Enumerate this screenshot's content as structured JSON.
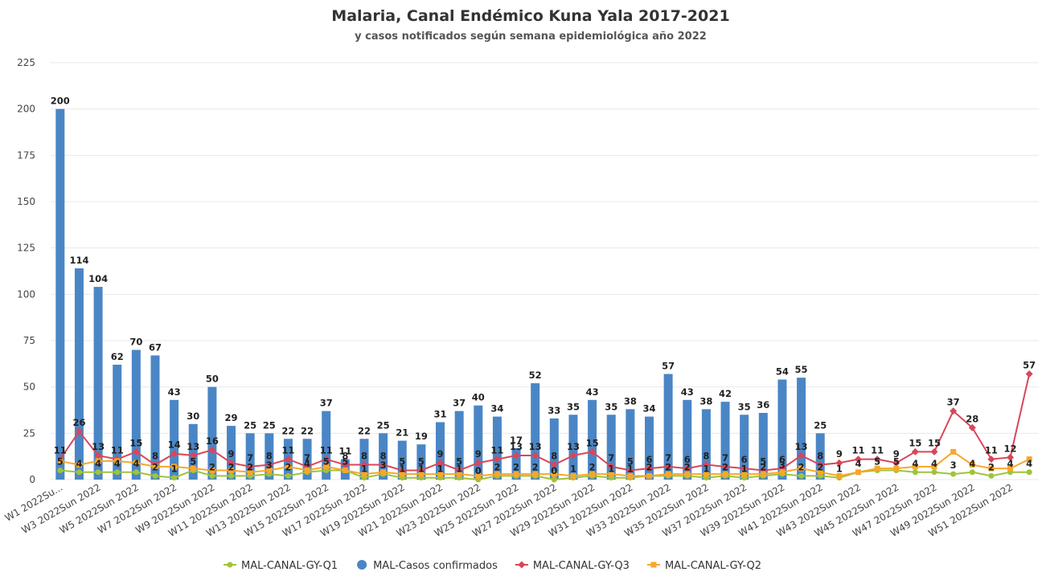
{
  "chart_data": {
    "type": "bar-line",
    "title": "Malaria, Canal Endémico Kuna Yala 2017-2021",
    "subtitle": "y casos notificados según semana epidemiológica año 2022",
    "categories": [
      "W1 2022Su...",
      null,
      "W3 2022Sun 2022",
      null,
      "W5 2022Sun 2022",
      null,
      "W7 2022Sun 2022",
      null,
      "W9 2022Sun 2022",
      null,
      "W11 2022Sun 2022",
      null,
      "W13 2022Sun 2022",
      null,
      "W15 2022Sun 2022",
      null,
      "W17 2022Sun 2022",
      null,
      "W19 2022Sun 2022",
      null,
      "W21 2022Sun 2022",
      null,
      "W23 2022Sun 2022",
      null,
      "W25 2022Sun 2022",
      null,
      "W27 2022Sun 2022",
      null,
      "W29 2022Sun 2022",
      null,
      "W31 2022Sun 2022",
      null,
      "W33 2022Sun 2022",
      null,
      "W35 2022Sun 2022",
      null,
      "W37 2022Sun 2022",
      null,
      "W39 2022Sun 2022",
      null,
      "W41 2022Sun 2022",
      null,
      "W43 2022Sun 2022",
      null,
      "W45 2022Sun 2022",
      null,
      "W47 2022Sun 2022",
      null,
      "W49 2022Sun 2022",
      null,
      "W51 2022Sun 2022",
      null
    ],
    "series": [
      {
        "name": "MAL-CANAL-GY-Q1",
        "kind": "line",
        "marker": "circle",
        "color": "#9ec43a",
        "labels": true,
        "values": [
          5,
          4,
          4,
          4,
          4,
          2,
          1,
          5,
          2,
          2,
          2,
          3,
          2,
          4,
          5,
          5,
          1,
          3,
          1,
          1,
          1,
          1,
          0,
          2,
          2,
          2,
          0,
          1,
          2,
          1,
          1,
          2,
          2,
          2,
          1,
          2,
          1,
          2,
          3,
          2,
          2,
          1,
          4,
          5,
          5,
          4,
          4,
          3,
          4,
          2,
          4,
          4
        ]
      },
      {
        "name": "MAL-Casos confirmados",
        "kind": "bar",
        "color": "#4a86c5",
        "labels": true,
        "values": [
          200,
          114,
          104,
          62,
          70,
          67,
          43,
          30,
          50,
          29,
          25,
          25,
          22,
          22,
          37,
          11,
          22,
          25,
          21,
          19,
          31,
          37,
          40,
          34,
          17,
          52,
          33,
          35,
          43,
          35,
          38,
          34,
          57,
          43,
          38,
          42,
          35,
          36,
          54,
          55,
          25,
          null,
          null,
          null,
          null,
          null,
          null,
          null,
          null,
          null,
          null,
          null
        ]
      },
      {
        "name": "MAL-CANAL-GY-Q3",
        "kind": "line",
        "marker": "diamond",
        "color": "#d9465a",
        "labels": true,
        "values": [
          11,
          26,
          13,
          11,
          15,
          8,
          14,
          13,
          16,
          9,
          7,
          8,
          11,
          7,
          11,
          8,
          8,
          8,
          5,
          5,
          9,
          5,
          9,
          11,
          13,
          13,
          8,
          13,
          15,
          7,
          5,
          6,
          7,
          6,
          8,
          7,
          6,
          5,
          6,
          13,
          8,
          9,
          11,
          11,
          9,
          15,
          15,
          37,
          28,
          11,
          12,
          57
        ]
      },
      {
        "name": "MAL-CANAL-GY-Q2",
        "kind": "line",
        "marker": "square",
        "color": "#f7a72b",
        "labels": false,
        "values": [
          10,
          8,
          10,
          10,
          9,
          7,
          7,
          6,
          5,
          5,
          4,
          5,
          7,
          5,
          7,
          5,
          3,
          4,
          3,
          3,
          3,
          3,
          2,
          3,
          3,
          3,
          3,
          2,
          3,
          3,
          2,
          2,
          3,
          3,
          3,
          3,
          3,
          3,
          4,
          6,
          4,
          2,
          4,
          6,
          6,
          7,
          7,
          15,
          8,
          6,
          6,
          11
        ]
      }
    ],
    "ylim": [
      0,
      225
    ],
    "yticks": [
      0,
      25,
      50,
      75,
      100,
      125,
      150,
      175,
      200,
      225
    ],
    "grid": true,
    "legend": "bottom"
  }
}
